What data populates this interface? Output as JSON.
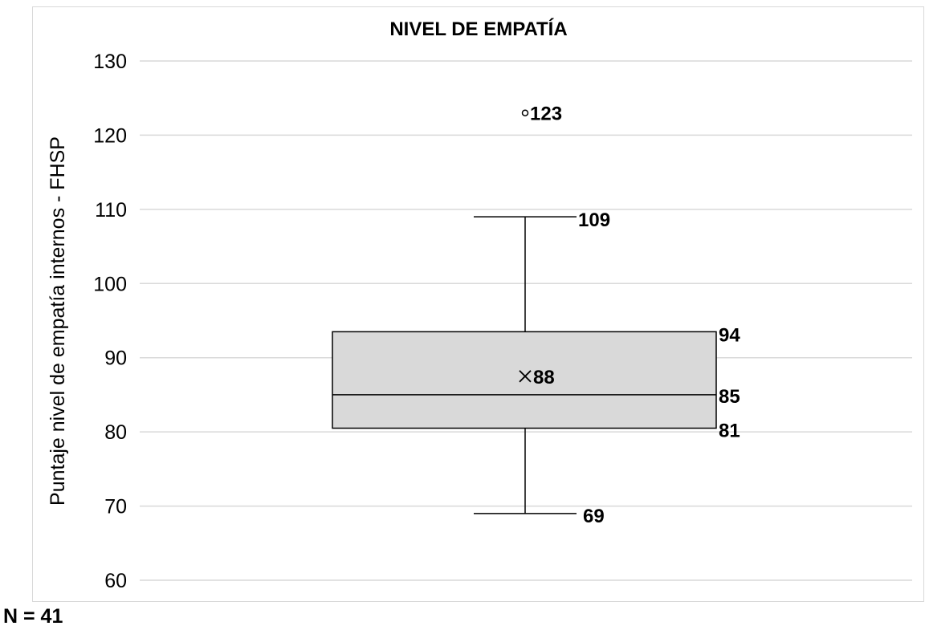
{
  "chart_data": {
    "type": "box",
    "title": "NIVEL DE EMPATÍA",
    "ylabel": "Puntaje nivel de empatía internos - FHSP",
    "xlabel": "",
    "ylim": [
      60,
      130
    ],
    "ytick_step": 10,
    "grid": true,
    "legend": "none",
    "box": {
      "whisker_low": 69,
      "q1": 80.5,
      "median": 85,
      "q3": 93.5,
      "whisker_high": 109,
      "mean": 87.5,
      "outliers": [
        123
      ]
    },
    "labels": {
      "whisker_low": "69",
      "q1": "81",
      "median": "85",
      "q3": "94",
      "whisker_high": "109",
      "mean": "88",
      "outlier": "123"
    },
    "colors": {
      "box_fill": "#d9d9d9",
      "line": "#000000",
      "grid": "#d9d9d9",
      "frame": "#d9d9d9"
    }
  },
  "footnote": "N = 41"
}
